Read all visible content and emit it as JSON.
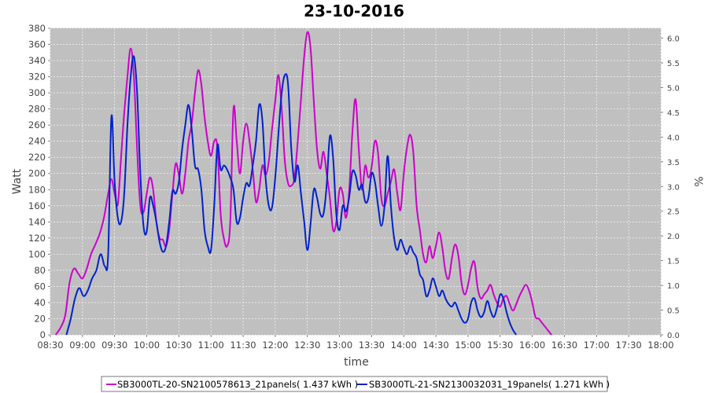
{
  "chart_data": {
    "type": "line",
    "title": "23-10-2016",
    "xlabel": "time",
    "ylabel": "Watt",
    "y2label": "%",
    "ylim": [
      0,
      380
    ],
    "y2lim": [
      0,
      6.2
    ],
    "grid": true,
    "legend_position": "bottom",
    "x_ticks": [
      "08:30",
      "09:00",
      "09:30",
      "10:00",
      "10:30",
      "11:00",
      "11:30",
      "12:00",
      "12:30",
      "13:00",
      "13:30",
      "14:00",
      "14:30",
      "15:00",
      "15:30",
      "16:00",
      "16:30",
      "17:00",
      "17:30",
      "18:00"
    ],
    "y_ticks": [
      0,
      20,
      40,
      60,
      80,
      100,
      120,
      140,
      160,
      180,
      200,
      220,
      240,
      260,
      280,
      300,
      320,
      340,
      360,
      380
    ],
    "y2_ticks": [
      "0.0",
      "0.5",
      "1.0",
      "1.5",
      "2.0",
      "2.5",
      "3.0",
      "3.5",
      "4.0",
      "4.5",
      "5.0",
      "5.5",
      "6.0"
    ],
    "colors": {
      "plot_bg": "#c0c0c0",
      "grid": "#ffffff"
    },
    "series": [
      {
        "name": "SB3000TL-20-SN2100578613_21panels( 1.437 kWh )",
        "color": "#cc00cc",
        "points": [
          [
            "08:35",
            0
          ],
          [
            "08:40",
            10
          ],
          [
            "08:44",
            25
          ],
          [
            "08:48",
            65
          ],
          [
            "08:52",
            82
          ],
          [
            "08:56",
            76
          ],
          [
            "09:00",
            70
          ],
          [
            "09:04",
            82
          ],
          [
            "09:08",
            100
          ],
          [
            "09:12",
            112
          ],
          [
            "09:16",
            125
          ],
          [
            "09:20",
            145
          ],
          [
            "09:24",
            175
          ],
          [
            "09:27",
            193
          ],
          [
            "09:30",
            175
          ],
          [
            "09:33",
            162
          ],
          [
            "09:36",
            220
          ],
          [
            "09:39",
            275
          ],
          [
            "09:42",
            320
          ],
          [
            "09:45",
            355
          ],
          [
            "09:48",
            320
          ],
          [
            "09:51",
            230
          ],
          [
            "09:54",
            160
          ],
          [
            "09:57",
            152
          ],
          [
            "10:00",
            175
          ],
          [
            "10:03",
            195
          ],
          [
            "10:06",
            180
          ],
          [
            "10:09",
            140
          ],
          [
            "10:12",
            120
          ],
          [
            "10:15",
            118
          ],
          [
            "10:18",
            110
          ],
          [
            "10:21",
            130
          ],
          [
            "10:24",
            175
          ],
          [
            "10:27",
            212
          ],
          [
            "10:30",
            198
          ],
          [
            "10:33",
            175
          ],
          [
            "10:36",
            200
          ],
          [
            "10:39",
            240
          ],
          [
            "10:42",
            262
          ],
          [
            "10:45",
            300
          ],
          [
            "10:48",
            328
          ],
          [
            "10:51",
            310
          ],
          [
            "10:54",
            270
          ],
          [
            "10:57",
            240
          ],
          [
            "11:00",
            222
          ],
          [
            "11:03",
            240
          ],
          [
            "11:06",
            232
          ],
          [
            "11:09",
            150
          ],
          [
            "11:12",
            120
          ],
          [
            "11:15",
            110
          ],
          [
            "11:18",
            140
          ],
          [
            "11:21",
            280
          ],
          [
            "11:24",
            240
          ],
          [
            "11:27",
            200
          ],
          [
            "11:30",
            240
          ],
          [
            "11:33",
            262
          ],
          [
            "11:36",
            240
          ],
          [
            "11:39",
            205
          ],
          [
            "11:42",
            165
          ],
          [
            "11:45",
            180
          ],
          [
            "11:48",
            210
          ],
          [
            "11:51",
            198
          ],
          [
            "11:54",
            215
          ],
          [
            "11:57",
            255
          ],
          [
            "12:00",
            290
          ],
          [
            "12:03",
            322
          ],
          [
            "12:06",
            280
          ],
          [
            "12:09",
            215
          ],
          [
            "12:12",
            188
          ],
          [
            "12:15",
            185
          ],
          [
            "12:18",
            195
          ],
          [
            "12:21",
            240
          ],
          [
            "12:24",
            292
          ],
          [
            "12:27",
            345
          ],
          [
            "12:30",
            375
          ],
          [
            "12:33",
            355
          ],
          [
            "12:36",
            290
          ],
          [
            "12:39",
            230
          ],
          [
            "12:42",
            206
          ],
          [
            "12:45",
            227
          ],
          [
            "12:48",
            200
          ],
          [
            "12:51",
            170
          ],
          [
            "12:54",
            130
          ],
          [
            "12:57",
            140
          ],
          [
            "13:00",
            180
          ],
          [
            "13:03",
            175
          ],
          [
            "13:06",
            145
          ],
          [
            "13:09",
            178
          ],
          [
            "13:12",
            250
          ],
          [
            "13:15",
            292
          ],
          [
            "13:18",
            230
          ],
          [
            "13:21",
            180
          ],
          [
            "13:24",
            210
          ],
          [
            "13:27",
            195
          ],
          [
            "13:30",
            208
          ],
          [
            "13:33",
            240
          ],
          [
            "13:36",
            225
          ],
          [
            "13:39",
            170
          ],
          [
            "13:42",
            160
          ],
          [
            "13:45",
            175
          ],
          [
            "13:48",
            190
          ],
          [
            "13:51",
            205
          ],
          [
            "13:54",
            175
          ],
          [
            "13:57",
            155
          ],
          [
            "14:00",
            200
          ],
          [
            "14:03",
            232
          ],
          [
            "14:06",
            248
          ],
          [
            "14:09",
            225
          ],
          [
            "14:12",
            160
          ],
          [
            "14:15",
            130
          ],
          [
            "14:18",
            100
          ],
          [
            "14:21",
            90
          ],
          [
            "14:24",
            110
          ],
          [
            "14:27",
            95
          ],
          [
            "14:30",
            110
          ],
          [
            "14:33",
            127
          ],
          [
            "14:36",
            108
          ],
          [
            "14:39",
            78
          ],
          [
            "14:42",
            70
          ],
          [
            "14:45",
            95
          ],
          [
            "14:48",
            112
          ],
          [
            "14:51",
            98
          ],
          [
            "14:54",
            64
          ],
          [
            "14:57",
            50
          ],
          [
            "15:00",
            62
          ],
          [
            "15:03",
            83
          ],
          [
            "15:06",
            90
          ],
          [
            "15:09",
            58
          ],
          [
            "15:12",
            45
          ],
          [
            "15:15",
            50
          ],
          [
            "15:18",
            55
          ],
          [
            "15:21",
            62
          ],
          [
            "15:24",
            50
          ],
          [
            "15:27",
            40
          ],
          [
            "15:30",
            35
          ],
          [
            "15:33",
            45
          ],
          [
            "15:36",
            48
          ],
          [
            "15:39",
            38
          ],
          [
            "15:42",
            30
          ],
          [
            "15:45",
            38
          ],
          [
            "15:48",
            48
          ],
          [
            "15:51",
            56
          ],
          [
            "15:54",
            62
          ],
          [
            "15:57",
            55
          ],
          [
            "16:00",
            40
          ],
          [
            "16:03",
            22
          ],
          [
            "16:06",
            20
          ],
          [
            "16:09",
            15
          ],
          [
            "16:12",
            10
          ],
          [
            "16:15",
            5
          ],
          [
            "16:18",
            0
          ]
        ]
      },
      {
        "name": "SB3000TL-21-SN2130032031_19panels( 1.271 kWh )",
        "color": "#0022cc",
        "points": [
          [
            "08:45",
            0
          ],
          [
            "08:49",
            20
          ],
          [
            "08:53",
            45
          ],
          [
            "08:57",
            58
          ],
          [
            "09:01",
            48
          ],
          [
            "09:05",
            55
          ],
          [
            "09:09",
            70
          ],
          [
            "09:13",
            80
          ],
          [
            "09:17",
            100
          ],
          [
            "09:21",
            85
          ],
          [
            "09:24",
            100
          ],
          [
            "09:27",
            270
          ],
          [
            "09:30",
            190
          ],
          [
            "09:33",
            145
          ],
          [
            "09:36",
            140
          ],
          [
            "09:39",
            175
          ],
          [
            "09:42",
            260
          ],
          [
            "09:45",
            320
          ],
          [
            "09:48",
            345
          ],
          [
            "09:51",
            300
          ],
          [
            "09:54",
            200
          ],
          [
            "09:57",
            135
          ],
          [
            "10:00",
            128
          ],
          [
            "10:03",
            170
          ],
          [
            "10:06",
            160
          ],
          [
            "10:09",
            140
          ],
          [
            "10:12",
            115
          ],
          [
            "10:15",
            103
          ],
          [
            "10:18",
            110
          ],
          [
            "10:21",
            140
          ],
          [
            "10:24",
            178
          ],
          [
            "10:27",
            175
          ],
          [
            "10:30",
            190
          ],
          [
            "10:33",
            230
          ],
          [
            "10:36",
            260
          ],
          [
            "10:39",
            285
          ],
          [
            "10:42",
            255
          ],
          [
            "10:45",
            210
          ],
          [
            "10:48",
            205
          ],
          [
            "10:51",
            180
          ],
          [
            "10:54",
            130
          ],
          [
            "10:57",
            110
          ],
          [
            "11:00",
            105
          ],
          [
            "11:03",
            160
          ],
          [
            "11:06",
            235
          ],
          [
            "11:09",
            205
          ],
          [
            "11:12",
            210
          ],
          [
            "11:15",
            205
          ],
          [
            "11:18",
            195
          ],
          [
            "11:21",
            180
          ],
          [
            "11:24",
            140
          ],
          [
            "11:27",
            145
          ],
          [
            "11:30",
            170
          ],
          [
            "11:33",
            188
          ],
          [
            "11:36",
            185
          ],
          [
            "11:39",
            210
          ],
          [
            "11:42",
            240
          ],
          [
            "11:45",
            285
          ],
          [
            "11:48",
            265
          ],
          [
            "11:51",
            195
          ],
          [
            "11:54",
            160
          ],
          [
            "11:57",
            158
          ],
          [
            "12:00",
            195
          ],
          [
            "12:03",
            250
          ],
          [
            "12:06",
            300
          ],
          [
            "12:09",
            322
          ],
          [
            "12:12",
            310
          ],
          [
            "12:15",
            230
          ],
          [
            "12:18",
            190
          ],
          [
            "12:21",
            210
          ],
          [
            "12:24",
            175
          ],
          [
            "12:27",
            140
          ],
          [
            "12:30",
            105
          ],
          [
            "12:33",
            138
          ],
          [
            "12:36",
            180
          ],
          [
            "12:39",
            170
          ],
          [
            "12:42",
            150
          ],
          [
            "12:45",
            150
          ],
          [
            "12:48",
            185
          ],
          [
            "12:51",
            246
          ],
          [
            "12:54",
            220
          ],
          [
            "12:57",
            150
          ],
          [
            "13:00",
            130
          ],
          [
            "13:03",
            160
          ],
          [
            "13:06",
            153
          ],
          [
            "13:09",
            170
          ],
          [
            "13:12",
            202
          ],
          [
            "13:15",
            198
          ],
          [
            "13:18",
            180
          ],
          [
            "13:21",
            186
          ],
          [
            "13:24",
            165
          ],
          [
            "13:27",
            170
          ],
          [
            "13:30",
            200
          ],
          [
            "13:33",
            190
          ],
          [
            "13:36",
            160
          ],
          [
            "13:39",
            135
          ],
          [
            "13:42",
            160
          ],
          [
            "13:45",
            222
          ],
          [
            "13:48",
            160
          ],
          [
            "13:51",
            120
          ],
          [
            "13:54",
            105
          ],
          [
            "13:57",
            118
          ],
          [
            "14:00",
            108
          ],
          [
            "14:03",
            100
          ],
          [
            "14:06",
            110
          ],
          [
            "14:09",
            102
          ],
          [
            "14:12",
            95
          ],
          [
            "14:15",
            75
          ],
          [
            "14:18",
            68
          ],
          [
            "14:21",
            48
          ],
          [
            "14:24",
            55
          ],
          [
            "14:27",
            70
          ],
          [
            "14:30",
            60
          ],
          [
            "14:33",
            48
          ],
          [
            "14:36",
            55
          ],
          [
            "14:39",
            45
          ],
          [
            "14:42",
            38
          ],
          [
            "14:45",
            35
          ],
          [
            "14:48",
            40
          ],
          [
            "14:51",
            30
          ],
          [
            "14:54",
            20
          ],
          [
            "14:57",
            15
          ],
          [
            "15:00",
            20
          ],
          [
            "15:03",
            40
          ],
          [
            "15:06",
            45
          ],
          [
            "15:09",
            30
          ],
          [
            "15:12",
            22
          ],
          [
            "15:15",
            28
          ],
          [
            "15:18",
            42
          ],
          [
            "15:21",
            30
          ],
          [
            "15:24",
            22
          ],
          [
            "15:27",
            33
          ],
          [
            "15:30",
            50
          ],
          [
            "15:33",
            45
          ],
          [
            "15:36",
            28
          ],
          [
            "15:39",
            15
          ],
          [
            "15:42",
            6
          ],
          [
            "15:45",
            0
          ]
        ]
      }
    ]
  }
}
